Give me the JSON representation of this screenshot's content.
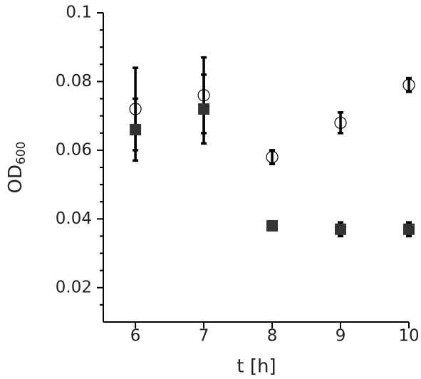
{
  "chart_data": {
    "type": "scatter",
    "x_label": "t [h]",
    "y_label": "OD",
    "y_label_subscript": "600",
    "x": [
      6,
      7,
      8,
      9,
      10
    ],
    "series": [
      {
        "marker": "circle",
        "color": "#000000",
        "values": [
          0.072,
          0.076,
          0.058,
          0.068,
          0.079
        ],
        "errors": [
          0.012,
          0.011,
          0.002,
          0.003,
          0.002
        ]
      },
      {
        "marker": "square",
        "color": "#333333",
        "values": [
          0.066,
          0.072,
          0.038,
          0.037,
          0.037
        ],
        "errors": [
          0.009,
          0.01,
          0.001,
          0.002,
          0.002
        ]
      }
    ],
    "xlim": [
      5.53,
      10
    ],
    "ylim": [
      0.01,
      0.1
    ],
    "xticks": [
      6,
      7,
      8,
      9,
      10
    ],
    "yticks": [
      0.02,
      0.04,
      0.06,
      0.08,
      0.1
    ],
    "yminorticks": [
      0.015,
      0.025,
      0.03,
      0.035,
      0.045,
      0.05,
      0.055,
      0.065,
      0.07,
      0.075,
      0.085,
      0.09,
      0.095
    ]
  }
}
